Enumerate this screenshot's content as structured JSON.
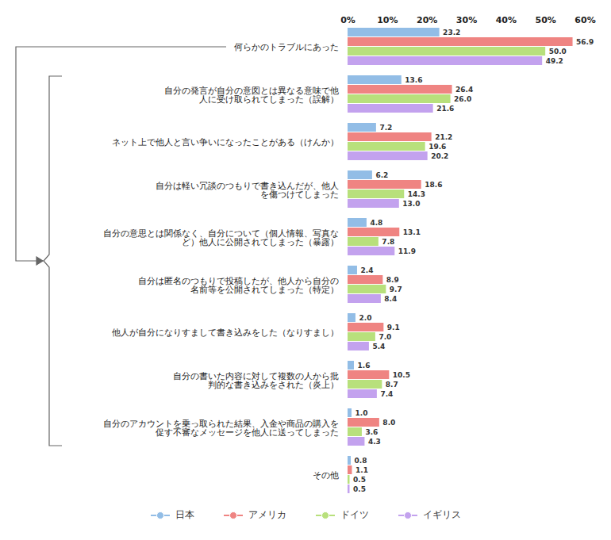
{
  "chart_data": {
    "type": "bar",
    "orientation": "horizontal",
    "data_labels": true,
    "grid": false,
    "legend": "bottom",
    "categories": [
      "何らかのトラブルにあった",
      "自分の発言が自分の意図とは異なる意味で他\n人に受け取られてしまった（誤解）",
      "ネット上で他人と言い争いになったことがある（けんか）",
      "自分は軽い冗談のつもりで書き込んだが、他人\nを傷つけてしまった",
      "自分の意思とは関係なく、自分について（個人情報、写真な\nど）他人に公開されてしまった（暴露）",
      "自分は匿名のつもりで投稿したが、他人から自分の\n名前等を公開されてしまった（特定）",
      "他人が自分になりすまして書き込みをした（なりすまし）",
      "自分の書いた内容に対して複数の人から批\n判的な書き込みをされた（炎上）",
      "自分のアカウントを乗っ取られた結果、入金や商品の購入を\n促す不審なメッセージを他人に送ってしまった",
      "その他"
    ],
    "series": [
      {
        "name": "日本",
        "color": "#92bde6",
        "values": [
          23.2,
          13.6,
          7.2,
          6.2,
          4.8,
          2.4,
          2.0,
          1.6,
          1.0,
          0.8
        ],
        "value_labels": [
          "23.2",
          "13.6",
          "7.2",
          "6.2",
          "4.8",
          "2.4",
          "2.0",
          "1.6",
          "1.0",
          "0.8"
        ]
      },
      {
        "name": "アメリカ",
        "color": "#ef8482",
        "values": [
          56.9,
          26.4,
          21.2,
          18.6,
          13.1,
          8.9,
          9.1,
          10.5,
          8.0,
          1.1
        ],
        "value_labels": [
          "56.9",
          "26.4",
          "21.2",
          "18.6",
          "13.1",
          "8.9",
          "9.1",
          "10.5",
          "8.0",
          "1.1"
        ]
      },
      {
        "name": "ドイツ",
        "color": "#b8e07c",
        "values": [
          50.0,
          26.0,
          19.6,
          14.3,
          7.8,
          9.7,
          7.0,
          8.7,
          3.6,
          0.5
        ],
        "value_labels": [
          "50.0",
          "26.0",
          "19.6",
          "14.3",
          "7.8",
          "9.7",
          "7.0",
          "8.7",
          "3.6",
          "0.5"
        ]
      },
      {
        "name": "イギリス",
        "color": "#c3a2ee",
        "values": [
          49.2,
          21.6,
          20.2,
          13.0,
          11.9,
          8.4,
          5.4,
          7.4,
          4.3,
          0.5
        ],
        "value_labels": [
          "49.2",
          "21.6",
          "20.2",
          "13.0",
          "11.9",
          "8.4",
          "5.4",
          "7.4",
          "4.3",
          "0.5"
        ]
      }
    ],
    "xlim": [
      0,
      60
    ],
    "xticks": [
      {
        "value": 0,
        "label": "0%"
      },
      {
        "value": 10,
        "label": "10%"
      },
      {
        "value": 20,
        "label": "20%"
      },
      {
        "value": 30,
        "label": "30%"
      },
      {
        "value": 40,
        "label": "40%"
      },
      {
        "value": 50,
        "label": "50%"
      },
      {
        "value": 60,
        "label": "60%"
      }
    ]
  }
}
